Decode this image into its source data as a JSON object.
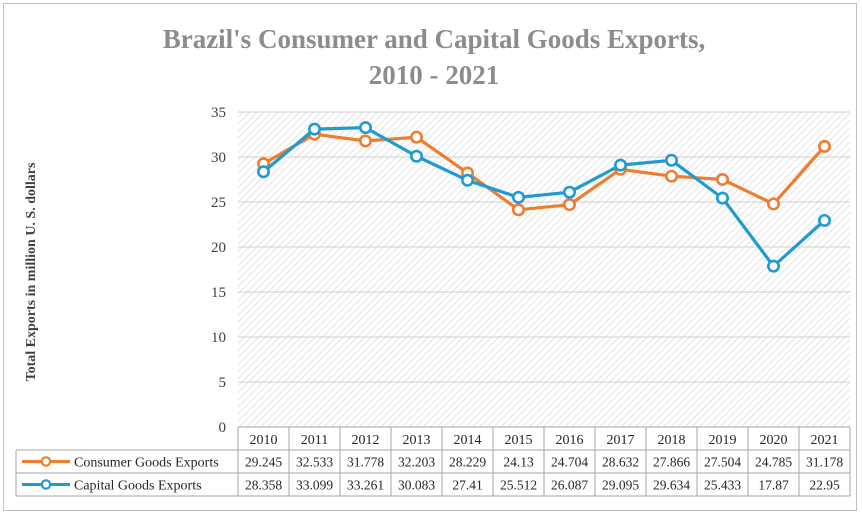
{
  "chart_data": {
    "type": "line",
    "title": "Brazil's Consumer and Capital Goods Exports,",
    "subtitle": "2010 - 2021",
    "xlabel": "",
    "ylabel": "Total Exports in million U. S. dollars",
    "ylim": [
      0,
      35
    ],
    "yticks": [
      0,
      5,
      10,
      15,
      20,
      25,
      30,
      35
    ],
    "grid": true,
    "legend_position": "data-table-bottom",
    "categories": [
      "2010",
      "2011",
      "2012",
      "2013",
      "2014",
      "2015",
      "2016",
      "2017",
      "2018",
      "2019",
      "2020",
      "2021"
    ],
    "series": [
      {
        "name": "Consumer Goods Exports",
        "color": "#ed7d31",
        "values": [
          29.245,
          32.533,
          31.778,
          32.203,
          28.229,
          24.13,
          24.704,
          28.632,
          27.866,
          27.504,
          24.785,
          31.178
        ]
      },
      {
        "name": "Capital Goods Exports",
        "color": "#1f9bd1",
        "values": [
          28.358,
          33.099,
          33.261,
          30.083,
          27.41,
          25.512,
          26.087,
          29.095,
          29.634,
          25.433,
          17.87,
          22.95
        ]
      }
    ]
  }
}
